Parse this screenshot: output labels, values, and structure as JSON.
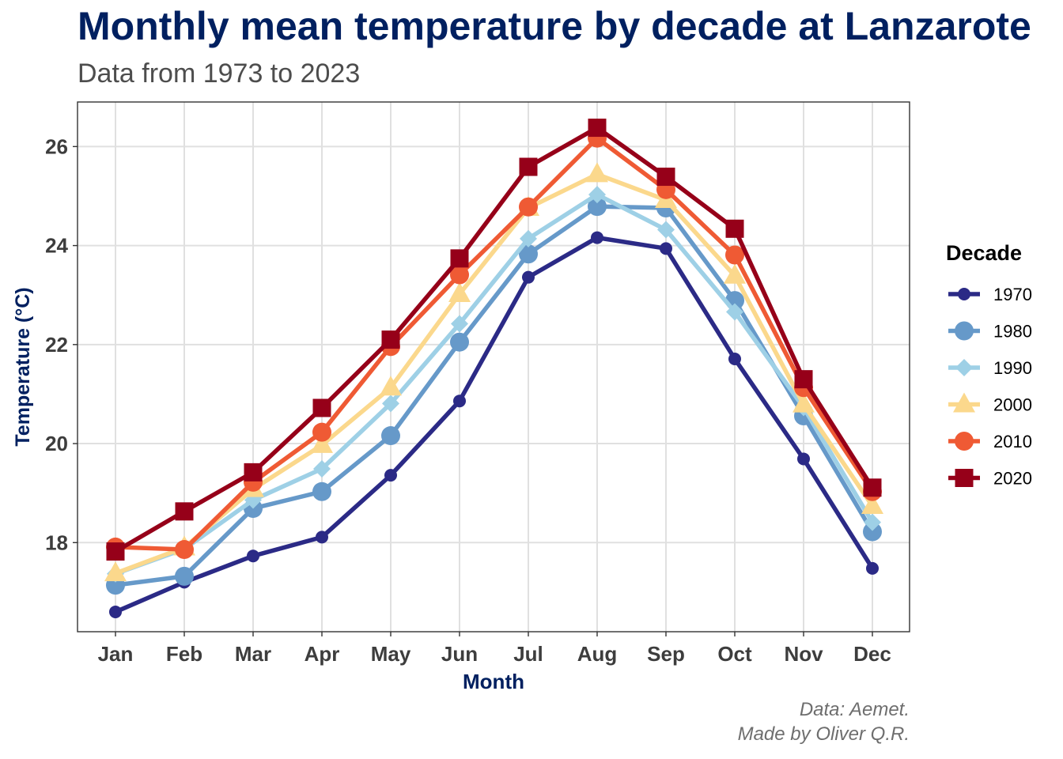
{
  "header": {
    "title": "Monthly mean temperature by decade at Lanzarote",
    "subtitle": "Data from 1973 to 2023"
  },
  "caption": {
    "line1": "Data: Aemet.",
    "line2": "Made by Oliver Q.R."
  },
  "chart_data": {
    "type": "line",
    "title": "Monthly mean temperature by decade at Lanzarote",
    "subtitle": "Data from 1973 to 2023",
    "xlabel": "Month",
    "ylabel": "Temperature (°C)",
    "categories": [
      "Jan",
      "Feb",
      "Mar",
      "Apr",
      "May",
      "Jun",
      "Jul",
      "Aug",
      "Sep",
      "Oct",
      "Nov",
      "Dec"
    ],
    "ylim": [
      16.2,
      26.9
    ],
    "yticks": [
      18,
      20,
      22,
      24,
      26
    ],
    "grid": true,
    "legend": {
      "title": "Decade",
      "position": "right"
    },
    "series": [
      {
        "name": "1970",
        "color": "#2b2a86",
        "marker": "circle-small",
        "values": [
          16.6,
          17.2,
          17.73,
          18.11,
          19.36,
          20.86,
          23.36,
          24.16,
          23.94,
          21.71,
          19.69,
          17.48
        ]
      },
      {
        "name": "1980",
        "color": "#6699c9",
        "marker": "circle",
        "values": [
          17.14,
          17.32,
          18.69,
          19.03,
          20.16,
          22.05,
          23.83,
          24.79,
          24.76,
          22.89,
          20.56,
          18.22
        ]
      },
      {
        "name": "1990",
        "color": "#9ed0e6",
        "marker": "diamond",
        "values": [
          17.37,
          17.87,
          18.86,
          19.49,
          20.81,
          22.42,
          24.14,
          25.03,
          24.32,
          22.66,
          20.73,
          18.41
        ]
      },
      {
        "name": "2000",
        "color": "#fbd88c",
        "marker": "triangle",
        "values": [
          17.38,
          17.9,
          19.08,
          19.97,
          21.13,
          23.02,
          24.76,
          25.44,
          24.92,
          23.39,
          20.79,
          18.74
        ]
      },
      {
        "name": "2010",
        "color": "#ef5a34",
        "marker": "circle",
        "values": [
          17.91,
          17.86,
          19.22,
          20.23,
          21.96,
          23.41,
          24.78,
          26.17,
          25.13,
          23.81,
          21.13,
          19.03
        ]
      },
      {
        "name": "2020",
        "color": "#960019",
        "marker": "square",
        "values": [
          17.82,
          18.63,
          19.42,
          20.72,
          22.1,
          23.74,
          25.59,
          26.38,
          25.39,
          24.34,
          21.3,
          19.11
        ]
      }
    ]
  }
}
